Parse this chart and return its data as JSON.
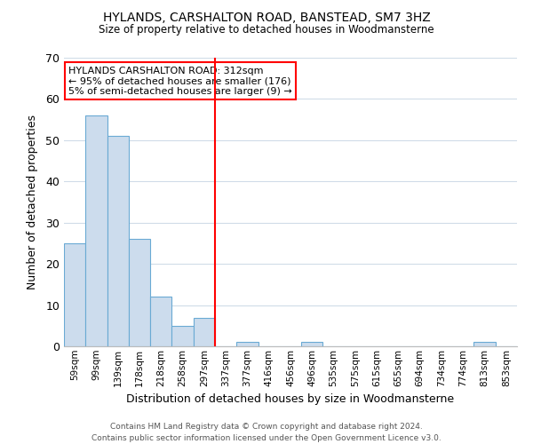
{
  "title": "HYLANDS, CARSHALTON ROAD, BANSTEAD, SM7 3HZ",
  "subtitle": "Size of property relative to detached houses in Woodmansterne",
  "xlabel": "Distribution of detached houses by size in Woodmansterne",
  "ylabel": "Number of detached properties",
  "bar_labels": [
    "59sqm",
    "99sqm",
    "139sqm",
    "178sqm",
    "218sqm",
    "258sqm",
    "297sqm",
    "337sqm",
    "377sqm",
    "416sqm",
    "456sqm",
    "496sqm",
    "535sqm",
    "575sqm",
    "615sqm",
    "655sqm",
    "694sqm",
    "734sqm",
    "774sqm",
    "813sqm",
    "853sqm"
  ],
  "bar_heights": [
    25,
    56,
    51,
    26,
    12,
    5,
    7,
    0,
    1,
    0,
    0,
    1,
    0,
    0,
    0,
    0,
    0,
    0,
    0,
    1,
    0
  ],
  "bar_color": "#ccdced",
  "bar_edge_color": "#6aaad4",
  "ylim": [
    0,
    70
  ],
  "yticks": [
    0,
    10,
    20,
    30,
    40,
    50,
    60,
    70
  ],
  "red_line_x": 6.5,
  "annotation_title": "HYLANDS CARSHALTON ROAD: 312sqm",
  "annotation_line1": "← 95% of detached houses are smaller (176)",
  "annotation_line2": "5% of semi-detached houses are larger (9) →",
  "footer_line1": "Contains HM Land Registry data © Crown copyright and database right 2024.",
  "footer_line2": "Contains public sector information licensed under the Open Government Licence v3.0.",
  "background_color": "#ffffff",
  "grid_color": "#d0dce8"
}
